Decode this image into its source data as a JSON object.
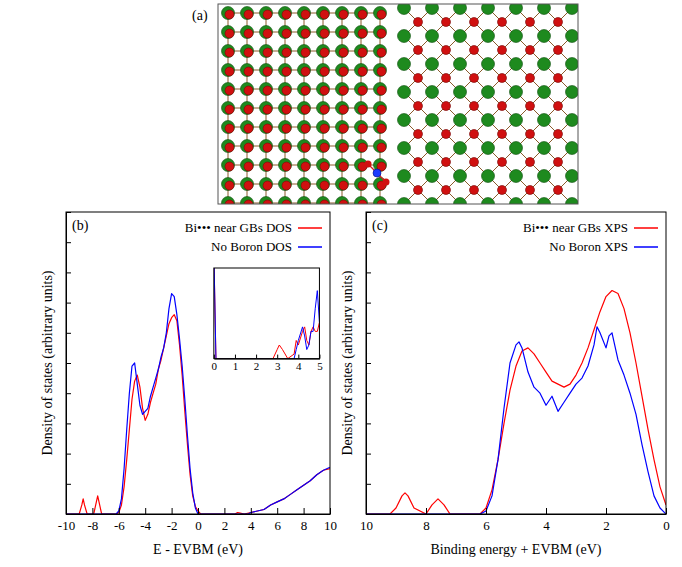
{
  "structure": {
    "label": "(a)"
  },
  "chart_data": [
    {
      "type": "line",
      "panel_label": "(b)",
      "x_label": "E - EVBM (eV)",
      "y_label": "Density of states (arbitrary units)",
      "xlim": [
        -10,
        10
      ],
      "xticks": [
        -10,
        -8,
        -6,
        -4,
        -2,
        0,
        2,
        4,
        6,
        8,
        10
      ],
      "ylim": [
        0,
        10
      ],
      "yticks": [
        0,
        1,
        2,
        3,
        4,
        5,
        6,
        7,
        8,
        9,
        10
      ],
      "tick_labels": "x",
      "legend": "upper right",
      "series": [
        {
          "name": "Bi••• near GBs DOS",
          "color": "#ff0000",
          "x": [
            -10,
            -9.0,
            -8.8,
            -8.7,
            -8.6,
            -8.4,
            -7.9,
            -7.7,
            -7.6,
            -7.5,
            -7.3,
            -6.2,
            -6.0,
            -5.8,
            -5.6,
            -5.4,
            -5.2,
            -5.0,
            -4.8,
            -4.6,
            -4.4,
            -4.2,
            -4.0,
            -3.8,
            -3.6,
            -3.4,
            -3.2,
            -3.0,
            -2.8,
            -2.6,
            -2.4,
            -2.2,
            -2.0,
            -1.8,
            -1.6,
            -1.4,
            -1.2,
            -1.0,
            -0.8,
            -0.6,
            -0.4,
            -0.2,
            0,
            0.2,
            0.5,
            2.8,
            3.0,
            3.2,
            3.5,
            4.0,
            4.5,
            5.0,
            5.5,
            6.0,
            6.5,
            7.0,
            7.5,
            8.0,
            8.5,
            9.0,
            9.5,
            10
          ],
          "values": [
            0,
            0,
            0.3,
            0.5,
            0.3,
            0,
            0,
            0.4,
            0.6,
            0.4,
            0,
            0,
            0.05,
            0.3,
            0.9,
            1.8,
            2.8,
            3.8,
            4.4,
            4.6,
            4.2,
            3.5,
            3.1,
            3.3,
            3.7,
            4.0,
            4.3,
            4.8,
            5.1,
            5.5,
            5.9,
            6.3,
            6.5,
            6.6,
            6.4,
            5.6,
            4.6,
            3.4,
            2.3,
            1.3,
            0.6,
            0.25,
            0.1,
            0,
            0,
            0,
            0.05,
            0.03,
            0,
            0.05,
            0.1,
            0.15,
            0.3,
            0.4,
            0.5,
            0.65,
            0.8,
            0.95,
            1.1,
            1.3,
            1.45,
            1.5
          ]
        },
        {
          "name": "No Boron DOS",
          "color": "#0000ff",
          "x": [
            -10,
            -6.2,
            -6.0,
            -5.8,
            -5.6,
            -5.4,
            -5.2,
            -5.0,
            -4.8,
            -4.6,
            -4.4,
            -4.2,
            -4.0,
            -3.8,
            -3.6,
            -3.4,
            -3.2,
            -3.0,
            -2.8,
            -2.6,
            -2.4,
            -2.2,
            -2.0,
            -1.8,
            -1.6,
            -1.4,
            -1.2,
            -1.0,
            -0.8,
            -0.6,
            -0.4,
            -0.2,
            0,
            0.5,
            3.8,
            4.0,
            4.5,
            5.0,
            5.5,
            6.0,
            6.5,
            7.0,
            7.5,
            8.0,
            8.5,
            9.0,
            9.5,
            10
          ],
          "values": [
            0,
            0,
            0.1,
            0.5,
            1.5,
            2.8,
            4.0,
            4.9,
            5.0,
            4.3,
            3.6,
            3.3,
            3.4,
            3.5,
            3.9,
            4.2,
            4.5,
            4.8,
            5.2,
            5.5,
            6.0,
            6.8,
            7.3,
            7.2,
            6.6,
            5.8,
            4.9,
            3.8,
            2.6,
            1.5,
            0.7,
            0.2,
            0,
            0,
            0,
            0.05,
            0.1,
            0.15,
            0.3,
            0.4,
            0.5,
            0.65,
            0.8,
            0.95,
            1.1,
            1.3,
            1.45,
            1.55
          ]
        }
      ],
      "inset": {
        "type": "line",
        "xlim": [
          0,
          5
        ],
        "xticks": [
          0,
          1,
          2,
          3,
          4,
          5
        ],
        "ylim": [
          0,
          1
        ],
        "tick_labels": "x",
        "series": [
          {
            "color": "#ff0000",
            "x": [
              0,
              0.1,
              0.3,
              1,
              2,
              2.8,
              3.0,
              3.1,
              3.25,
              3.5,
              3.8,
              3.9,
              4.0,
              4.2,
              4.3,
              4.4,
              4.5,
              4.6,
              4.7,
              4.8,
              4.9,
              5.0
            ],
            "values": [
              1.2,
              0,
              0,
              0,
              0,
              0,
              0.1,
              0.15,
              0.1,
              0,
              0.05,
              0.2,
              0.15,
              0.3,
              0.35,
              0.2,
              0.15,
              0.3,
              0.35,
              0.3,
              0.3,
              0.4
            ]
          },
          {
            "color": "#0000ff",
            "x": [
              0,
              0.1,
              0.3,
              1,
              2,
              2.8,
              3.0,
              3.1,
              3.25,
              3.5,
              3.8,
              3.9,
              4.0,
              4.2,
              4.3,
              4.4,
              4.5,
              4.6,
              4.7,
              4.8,
              4.9,
              5.0
            ],
            "values": [
              1.2,
              0,
              0,
              0,
              0,
              0,
              0,
              0,
              0,
              0,
              0,
              0.1,
              0.2,
              0.35,
              0.25,
              0.1,
              0.15,
              0.3,
              0.3,
              0.55,
              0.75,
              0.4
            ]
          }
        ]
      }
    },
    {
      "type": "line",
      "panel_label": "(c)",
      "x_label": "Binding energy + EVBM (eV)",
      "y_label": "Density of states (arbitrary units)",
      "xlim": [
        10,
        0
      ],
      "xticks": [
        10,
        8,
        6,
        4,
        2,
        0
      ],
      "ylim": [
        0,
        10
      ],
      "yticks": [
        0,
        1,
        2,
        3,
        4,
        5,
        6,
        7,
        8,
        9,
        10
      ],
      "tick_labels": "x",
      "legend": "upper right",
      "series": [
        {
          "name": "Bi••• near GBs XPS",
          "color": "#ff0000",
          "x": [
            10,
            9.2,
            9.0,
            8.8,
            8.7,
            8.6,
            8.4,
            8.0,
            7.8,
            7.6,
            7.4,
            7.2,
            6.2,
            6.0,
            5.8,
            5.6,
            5.4,
            5.2,
            5.0,
            4.8,
            4.6,
            4.4,
            4.2,
            4.0,
            3.8,
            3.6,
            3.4,
            3.2,
            3.0,
            2.8,
            2.6,
            2.4,
            2.2,
            2.0,
            1.8,
            1.6,
            1.4,
            1.2,
            1.0,
            0.8,
            0.6,
            0.4,
            0.2,
            0
          ],
          "values": [
            0,
            0,
            0.2,
            0.6,
            0.7,
            0.6,
            0.2,
            0,
            0.3,
            0.5,
            0.3,
            0,
            0,
            0.2,
            0.8,
            1.8,
            3.0,
            4.1,
            4.9,
            5.4,
            5.5,
            5.3,
            5.0,
            4.7,
            4.4,
            4.3,
            4.2,
            4.3,
            4.6,
            5.0,
            5.5,
            6.1,
            6.7,
            7.2,
            7.4,
            7.3,
            6.8,
            6.0,
            5.0,
            3.9,
            2.8,
            1.8,
            0.9,
            0.3
          ]
        },
        {
          "name": "No Boron XPS",
          "color": "#0000ff",
          "x": [
            10,
            6.2,
            6.0,
            5.8,
            5.6,
            5.4,
            5.2,
            5.0,
            4.9,
            4.8,
            4.6,
            4.4,
            4.2,
            4.0,
            3.8,
            3.6,
            3.4,
            3.2,
            3.0,
            2.8,
            2.6,
            2.4,
            2.3,
            2.2,
            2.0,
            1.9,
            1.8,
            1.6,
            1.4,
            1.2,
            1.0,
            0.8,
            0.6,
            0.4,
            0.2,
            0
          ],
          "values": [
            0,
            0,
            0.1,
            0.6,
            1.8,
            3.5,
            5.0,
            5.6,
            5.7,
            5.5,
            4.7,
            4.2,
            4.0,
            3.6,
            3.9,
            3.4,
            3.7,
            4.0,
            4.3,
            4.5,
            4.9,
            5.6,
            6.2,
            6.0,
            5.5,
            5.9,
            6.0,
            5.1,
            4.6,
            4.0,
            3.3,
            2.3,
            1.4,
            0.6,
            0.2,
            0
          ]
        }
      ]
    }
  ]
}
